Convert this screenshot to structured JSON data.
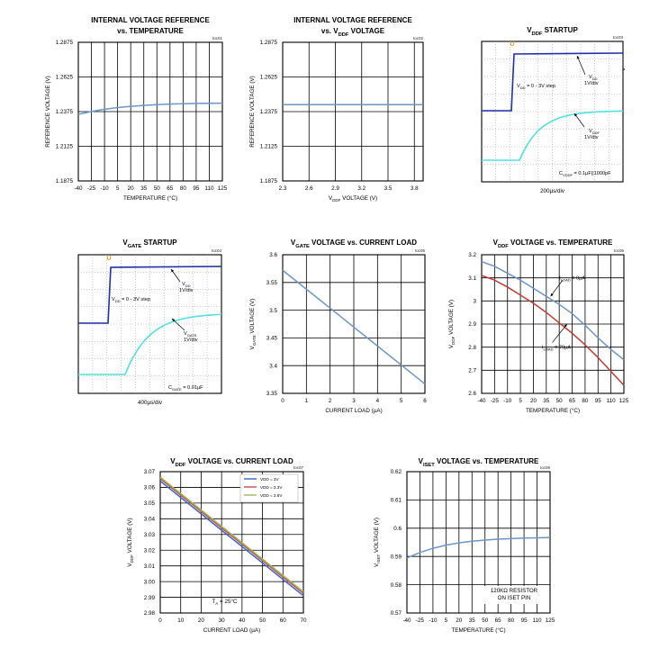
{
  "colors": {
    "blue": "#6b96c8",
    "red": "#c23b33",
    "navy": "#1f2ea8",
    "cyan": "#4fe2e2",
    "grid": "#000000",
    "marker": "#e0a020",
    "series_3v": "#3a63c8",
    "series_33v": "#c0504d",
    "series_36v": "#9bbb59"
  },
  "chart_data": [
    {
      "id": "toc01",
      "type": "line",
      "tag": "toc01",
      "title": [
        "INTERNAL VOLTAGE REFERENCE",
        "vs. TEMPERATURE"
      ],
      "xlabel": "TEMPERATURE (°C)",
      "ylabel": "REFERENCE VOLTAGE (V)",
      "xlim": [
        -40,
        125
      ],
      "ylim": [
        1.1875,
        1.2875
      ],
      "xticks": [
        -40,
        -25,
        -10,
        5,
        20,
        35,
        50,
        65,
        80,
        95,
        110,
        125
      ],
      "yticks": [
        1.1875,
        1.2125,
        1.2375,
        1.2625,
        1.2875
      ],
      "ytick_labels": [
        "1.1875",
        "1.2125",
        "1.2375",
        "1.2625",
        "1.2875"
      ],
      "grid": true,
      "series": [
        {
          "color": "blue",
          "x": [
            -40,
            -25,
            -10,
            5,
            20,
            35,
            50,
            65,
            80,
            95,
            110,
            125
          ],
          "y": [
            1.2355,
            1.2376,
            1.2392,
            1.2404,
            1.2413,
            1.242,
            1.2425,
            1.2429,
            1.2432,
            1.2434,
            1.2435,
            1.2436
          ]
        }
      ]
    },
    {
      "id": "toc02",
      "type": "line",
      "tag": "toc02",
      "title": [
        "INTERNAL VOLTAGE REFERENCE",
        "vs. V_DDF VOLTAGE"
      ],
      "xlabel": "V_DDF VOLTAGE (V)",
      "ylabel": "REFERENCE VOLTAGE (V)",
      "xlim": [
        2.3,
        3.9
      ],
      "ylim": [
        1.1875,
        1.2875
      ],
      "xticks": [
        2.3,
        2.6,
        2.9,
        3.2,
        3.5,
        3.8
      ],
      "yticks": [
        1.1875,
        1.2125,
        1.2375,
        1.2625,
        1.2875
      ],
      "ytick_labels": [
        "1.1875",
        "1.2125",
        "1.2375",
        "1.2625",
        "1.2875"
      ],
      "grid": true,
      "series": [
        {
          "color": "blue",
          "x": [
            2.3,
            3.9
          ],
          "y": [
            1.2425,
            1.2425
          ]
        }
      ]
    },
    {
      "id": "toc03",
      "type": "scope",
      "tag": "toc03",
      "title": "V_DDF STARTUP",
      "xlabel": "200µs/div",
      "marker": "U",
      "annotations": [
        {
          "text": "V_DD = 0 - 3V step"
        },
        {
          "text": "V_DD",
          "text2": "1V/div"
        },
        {
          "text": "V_DDF",
          "text2": "1V/div"
        },
        {
          "text": "C_VDDF = 0.1µF||1000pF"
        }
      ]
    },
    {
      "id": "toc04",
      "type": "scope",
      "tag": "toc04",
      "title": "V_GATE STARTUP",
      "xlabel": "400µs/div",
      "marker": "U",
      "annotations": [
        {
          "text": "V_DD",
          "text2": "1V/div"
        },
        {
          "text": "V_DD = 0 - 3V step"
        },
        {
          "text": "V_GATE",
          "text2": "1V/div"
        },
        {
          "text": "C_GATE = 0.01µF"
        }
      ]
    },
    {
      "id": "toc05",
      "type": "line",
      "tag": "toc05",
      "title": "V_GATE VOLTAGE vs. CURRENT LOAD",
      "xlabel": "CURRENT LOAD (µA)",
      "ylabel": "V_GATE VOLTAGE (V)",
      "xlim": [
        0,
        6
      ],
      "ylim": [
        3.35,
        3.6
      ],
      "xticks": [
        0,
        1,
        2,
        3,
        4,
        5,
        6
      ],
      "yticks": [
        3.35,
        3.4,
        3.45,
        3.5,
        3.55,
        3.6
      ],
      "ytick_labels": [
        "3.35",
        "3.4",
        "3.45",
        "3.5",
        "3.55",
        "3.6"
      ],
      "grid": true,
      "series": [
        {
          "color": "blue",
          "x": [
            0,
            6
          ],
          "y": [
            3.572,
            3.367
          ]
        }
      ]
    },
    {
      "id": "toc06",
      "type": "line",
      "tag": "toc06",
      "title": "V_DDF VOLTAGE vs. TEMPERATURE",
      "xlabel": "TEMPERATURE (°C)",
      "ylabel": "V_DDF VOLTAGE (V)",
      "xlim": [
        -40,
        125
      ],
      "ylim": [
        2.6,
        3.2
      ],
      "xticks": [
        -40,
        -25,
        -10,
        5,
        20,
        35,
        50,
        65,
        80,
        95,
        110,
        125
      ],
      "yticks": [
        2.6,
        2.7,
        2.8,
        2.9,
        3.0,
        3.1,
        3.2
      ],
      "ytick_labels": [
        "2.6",
        "2.7",
        "2.8",
        "2.9",
        "3",
        "3.1",
        "3.2"
      ],
      "grid": true,
      "series": [
        {
          "name": "I_LOAD = 0µA",
          "color": "blue",
          "x": [
            -40,
            -25,
            -10,
            5,
            20,
            35,
            50,
            65,
            80,
            95,
            110,
            125
          ],
          "y": [
            3.17,
            3.15,
            3.12,
            3.09,
            3.055,
            3.02,
            2.985,
            2.945,
            2.895,
            2.84,
            2.79,
            2.745
          ]
        },
        {
          "name": "I_LOAD = 70µA",
          "color": "red",
          "x": [
            -40,
            -25,
            -10,
            5,
            20,
            35,
            50,
            65,
            80,
            95,
            110,
            125
          ],
          "y": [
            3.11,
            3.09,
            3.06,
            3.025,
            2.99,
            2.95,
            2.905,
            2.86,
            2.81,
            2.755,
            2.695,
            2.635
          ]
        }
      ],
      "annotations": [
        {
          "text": "I_LOAD = 0µA"
        },
        {
          "text": "I_LOAD = 70µA"
        }
      ]
    },
    {
      "id": "toc07",
      "type": "line",
      "tag": "toc07",
      "title": "V_DDF VOLTAGE vs. CURRENT LOAD",
      "xlabel": "CURRENT LOAD (µA)",
      "ylabel": "V_DDF VOLTAGE (V)",
      "xlim": [
        0,
        70
      ],
      "ylim": [
        2.98,
        3.07
      ],
      "xticks": [
        0,
        10,
        20,
        30,
        40,
        50,
        60,
        70
      ],
      "yticks": [
        2.98,
        2.99,
        3.0,
        3.01,
        3.02,
        3.03,
        3.04,
        3.05,
        3.06,
        3.07
      ],
      "ytick_labels": [
        "2.98",
        "2.99",
        "3.00",
        "3.01",
        "3.02",
        "3.03",
        "3.04",
        "3.05",
        "3.06",
        "3.07"
      ],
      "grid": true,
      "legend": "top-right",
      "series": [
        {
          "name": "VDD = 3V",
          "color": "series_3v",
          "x": [
            0,
            70
          ],
          "y": [
            3.064,
            2.991
          ]
        },
        {
          "name": "VDD = 3.3V",
          "color": "series_33v",
          "x": [
            0,
            70
          ],
          "y": [
            3.0655,
            2.9925
          ]
        },
        {
          "name": "VDD = 3.6V",
          "color": "series_36v",
          "x": [
            0,
            70
          ],
          "y": [
            3.0665,
            2.9935
          ]
        }
      ],
      "annotations": [
        {
          "text": "T_A = 25°C"
        }
      ]
    },
    {
      "id": "toc08",
      "type": "line",
      "tag": "toc08",
      "title": "V_ISET VOLTAGE vs. TEMPERATURE",
      "xlabel": "TEMPERATURE (°C)",
      "ylabel": "V_ISET VOLTAGE (V)",
      "xlim": [
        -40,
        125
      ],
      "ylim": [
        0.57,
        0.62
      ],
      "xticks": [
        -40,
        -25,
        -10,
        5,
        20,
        35,
        50,
        65,
        80,
        95,
        110,
        125
      ],
      "yticks": [
        0.57,
        0.58,
        0.59,
        0.6,
        0.61,
        0.62
      ],
      "ytick_labels": [
        "0.57",
        "0.58",
        "0.59",
        "0.6",
        "0.61",
        "0.62"
      ],
      "grid": true,
      "series": [
        {
          "color": "blue",
          "x": [
            -40,
            -25,
            -10,
            5,
            20,
            35,
            50,
            65,
            80,
            95,
            110,
            125
          ],
          "y": [
            0.5895,
            0.5914,
            0.5929,
            0.594,
            0.5948,
            0.5954,
            0.5958,
            0.5961,
            0.5963,
            0.5965,
            0.5966,
            0.5967
          ]
        }
      ],
      "annotations": [
        {
          "text": "120KΩ RESISTOR",
          "text2": "ON ISET PIN"
        }
      ]
    }
  ]
}
